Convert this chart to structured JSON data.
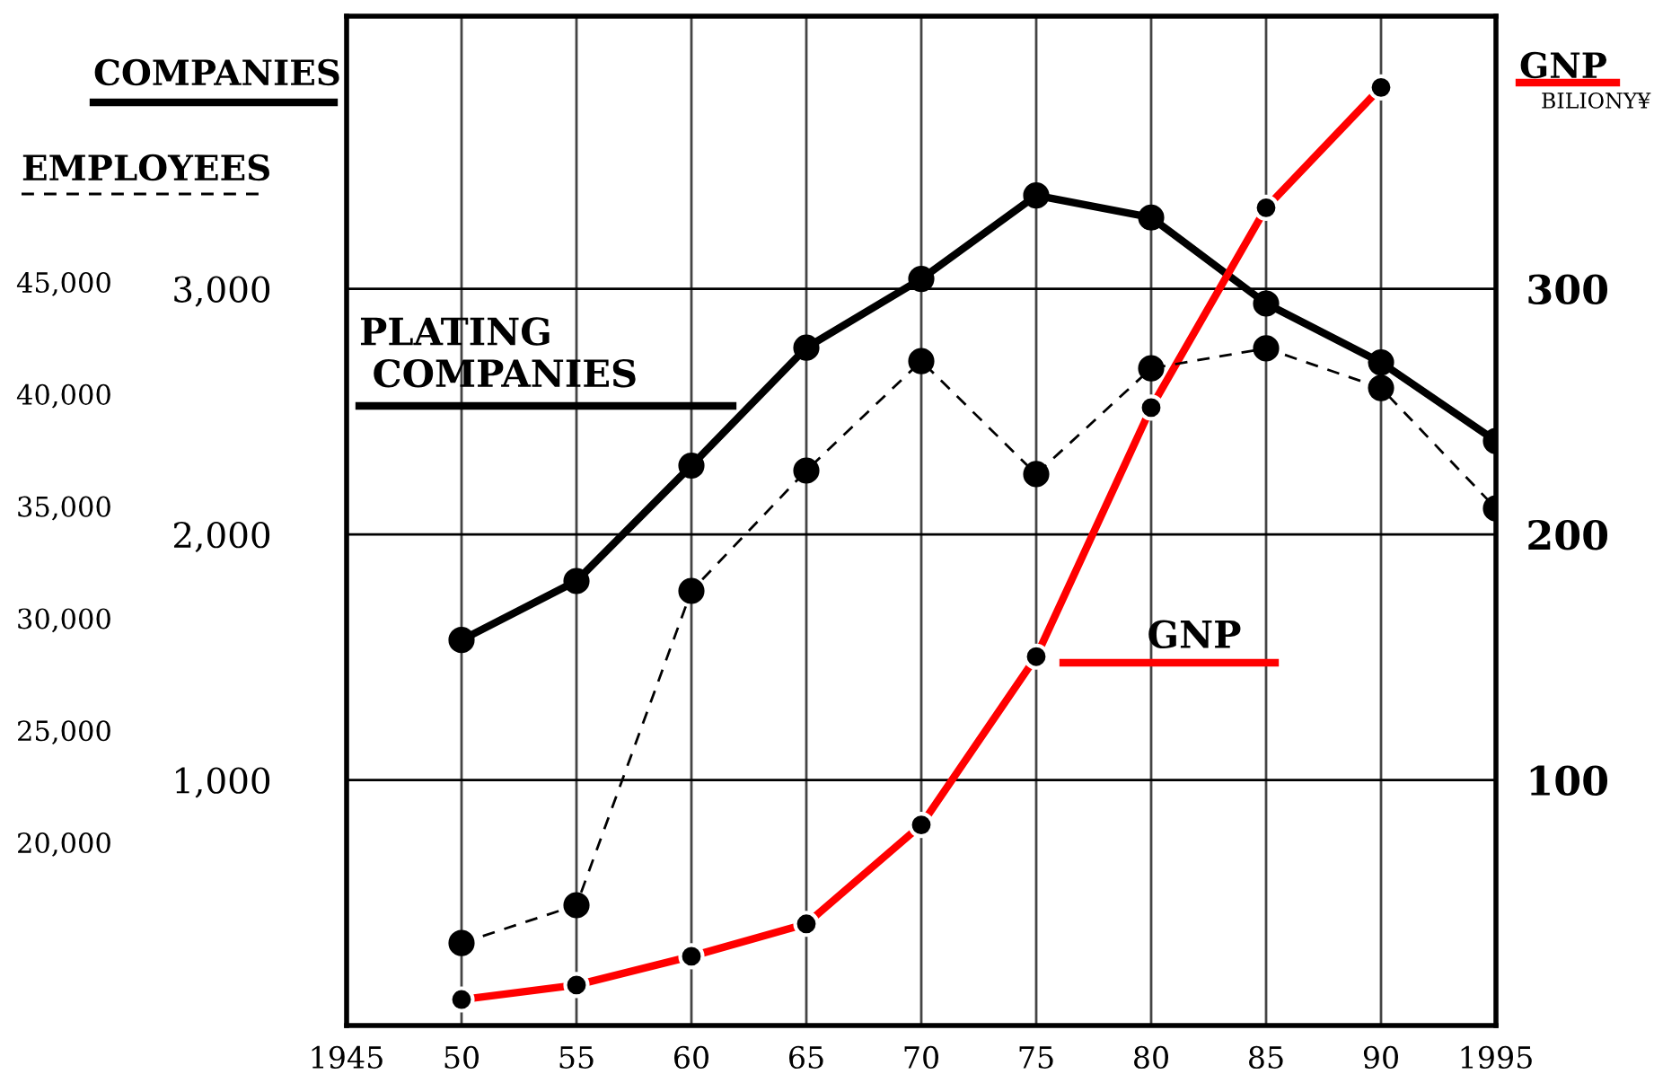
{
  "chart_data": {
    "type": "line",
    "ylabel": "COMPANIES",
    "y3label": "EMPLOYEES",
    "y2label": "GNP",
    "annotations": [
      "BILIONY¥"
    ],
    "x": [
      1950,
      1955,
      1960,
      1965,
      1970,
      1975,
      1980,
      1985,
      1990,
      1995
    ],
    "xlim": [
      1945,
      1995
    ],
    "xticks": [
      1945,
      {
        "value": 1950,
        "label": "50"
      },
      {
        "value": 1955,
        "label": "55"
      },
      {
        "value": 1960,
        "label": "60"
      },
      {
        "value": 1965,
        "label": "65"
      },
      {
        "value": 1970,
        "label": "70"
      },
      {
        "value": 1975,
        "label": "75"
      },
      {
        "value": 1980,
        "label": "80"
      },
      {
        "value": 1985,
        "label": "85"
      },
      {
        "value": 1990,
        "label": "90"
      },
      1995
    ],
    "ylim": [
      0,
      4110
    ],
    "yticks": [
      {
        "value": 1000,
        "label": "1,000"
      },
      {
        "value": 2000,
        "label": "2,000"
      },
      {
        "value": 3000,
        "label": "3,000"
      }
    ],
    "y2lim": [
      0,
      411
    ],
    "y2ticks": [
      100,
      200,
      300
    ],
    "y3lim": [
      11830,
      56860
    ],
    "y3ticks": [
      {
        "value": 20000,
        "label": "20,000"
      },
      {
        "value": 25000,
        "label": "25,000"
      },
      {
        "value": 30000,
        "label": "30,000"
      },
      {
        "value": 35000,
        "label": "35,000"
      },
      {
        "value": 40000,
        "label": "40,000"
      },
      {
        "value": 45000,
        "label": "45,000"
      }
    ],
    "grid": true,
    "marker": "circle",
    "series": [
      {
        "name": "PLATING\n COMPANIES",
        "color": "#000000",
        "line_style": "solid",
        "values": [
          1570,
          1810,
          2280,
          2760,
          3040,
          3380,
          3290,
          2940,
          2700,
          2380
        ]
      },
      {
        "axis": "y3",
        "color": "#000000",
        "line_style": "dashed",
        "values": [
          15510,
          17200,
          31220,
          36590,
          41470,
          36430,
          41150,
          42040,
          40270,
          34900
        ]
      },
      {
        "name": "GNP",
        "axis": "y2",
        "color": "#ff0000",
        "line_style": "solid",
        "colors": [
          "#000000",
          "#000000",
          "#000000",
          "#000000",
          "#000000",
          "#000000",
          "#000000",
          "#000000",
          "#000000",
          null
        ],
        "values": [
          10.6,
          16.5,
          28.2,
          41.4,
          81.7,
          150.2,
          251.6,
          333,
          382,
          null
        ]
      }
    ]
  }
}
